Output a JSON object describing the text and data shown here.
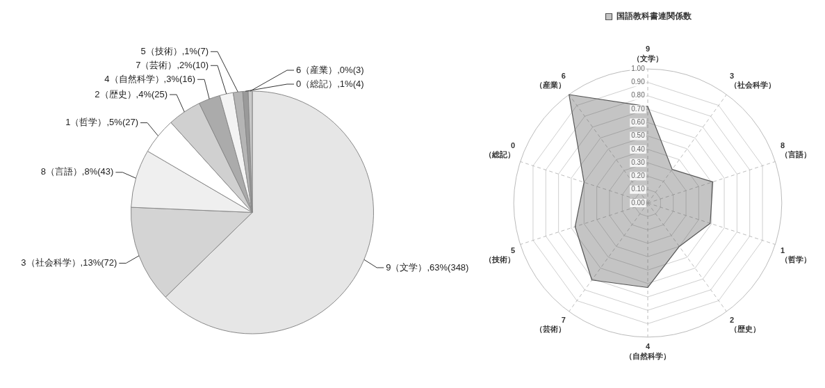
{
  "chart_data": [
    {
      "type": "pie",
      "categories": [
        "9（文学）",
        "3（社会科学）",
        "8（言語）",
        "1（哲学）",
        "2（歴史）",
        "4（自然科学）",
        "7（芸術）",
        "5（技術）",
        "0（総記）",
        "6（産業）"
      ],
      "values": [
        348,
        72,
        43,
        27,
        25,
        16,
        10,
        7,
        4,
        3
      ],
      "colors": [
        "#e6e6e6",
        "#d4d4d4",
        "#efefef",
        "#ffffff",
        "#d0d0d0",
        "#ababab",
        "#f3f3f3",
        "#b5b5b5",
        "#9a9a9a",
        "#c8c8c8"
      ],
      "value_labels": [
        ",63%(348)",
        ",13%(72)",
        ",8%(43)",
        ",5%(27)",
        ",4%(25)",
        ",3%(16)",
        ",2%(10)",
        ",1%(7)",
        ",1%(4)",
        ",0%(3)"
      ]
    },
    {
      "type": "radar",
      "categories": [
        "9\n（文学）",
        "3\n（社会科学）",
        "8\n（言語）",
        "1\n（哲学）",
        "2\n（歴史）",
        "4\n（自然科学）",
        "7\n（芸術）",
        "5\n（技術）",
        "0\n（総記）",
        "6\n（産業）"
      ],
      "series": [
        {
          "name": "国語教科書連関係数",
          "color": "#555555",
          "values": [
            0.72,
            0.31,
            0.51,
            0.49,
            0.4,
            0.63,
            0.71,
            0.57,
            0.5,
            1.0
          ]
        }
      ],
      "ylim": [
        0,
        1
      ],
      "yticks": [
        {
          "value": 0,
          "label": "0.00"
        },
        {
          "value": 0.1,
          "label": "0.10"
        },
        {
          "value": 0.2,
          "label": "0.20"
        },
        {
          "value": 0.3,
          "label": "0.30"
        },
        {
          "value": 0.4,
          "label": "0.40"
        },
        {
          "value": 0.5,
          "label": "0.50"
        },
        {
          "value": 0.6,
          "label": "0.60"
        },
        {
          "value": 0.7,
          "label": "0.70"
        },
        {
          "value": 0.8,
          "label": "0.80"
        },
        {
          "value": 0.9,
          "label": "0.90"
        },
        {
          "value": 1,
          "label": "1.00"
        }
      ],
      "grid": true,
      "legend": "top",
      "marker": "none",
      "line_style": "solid"
    }
  ]
}
